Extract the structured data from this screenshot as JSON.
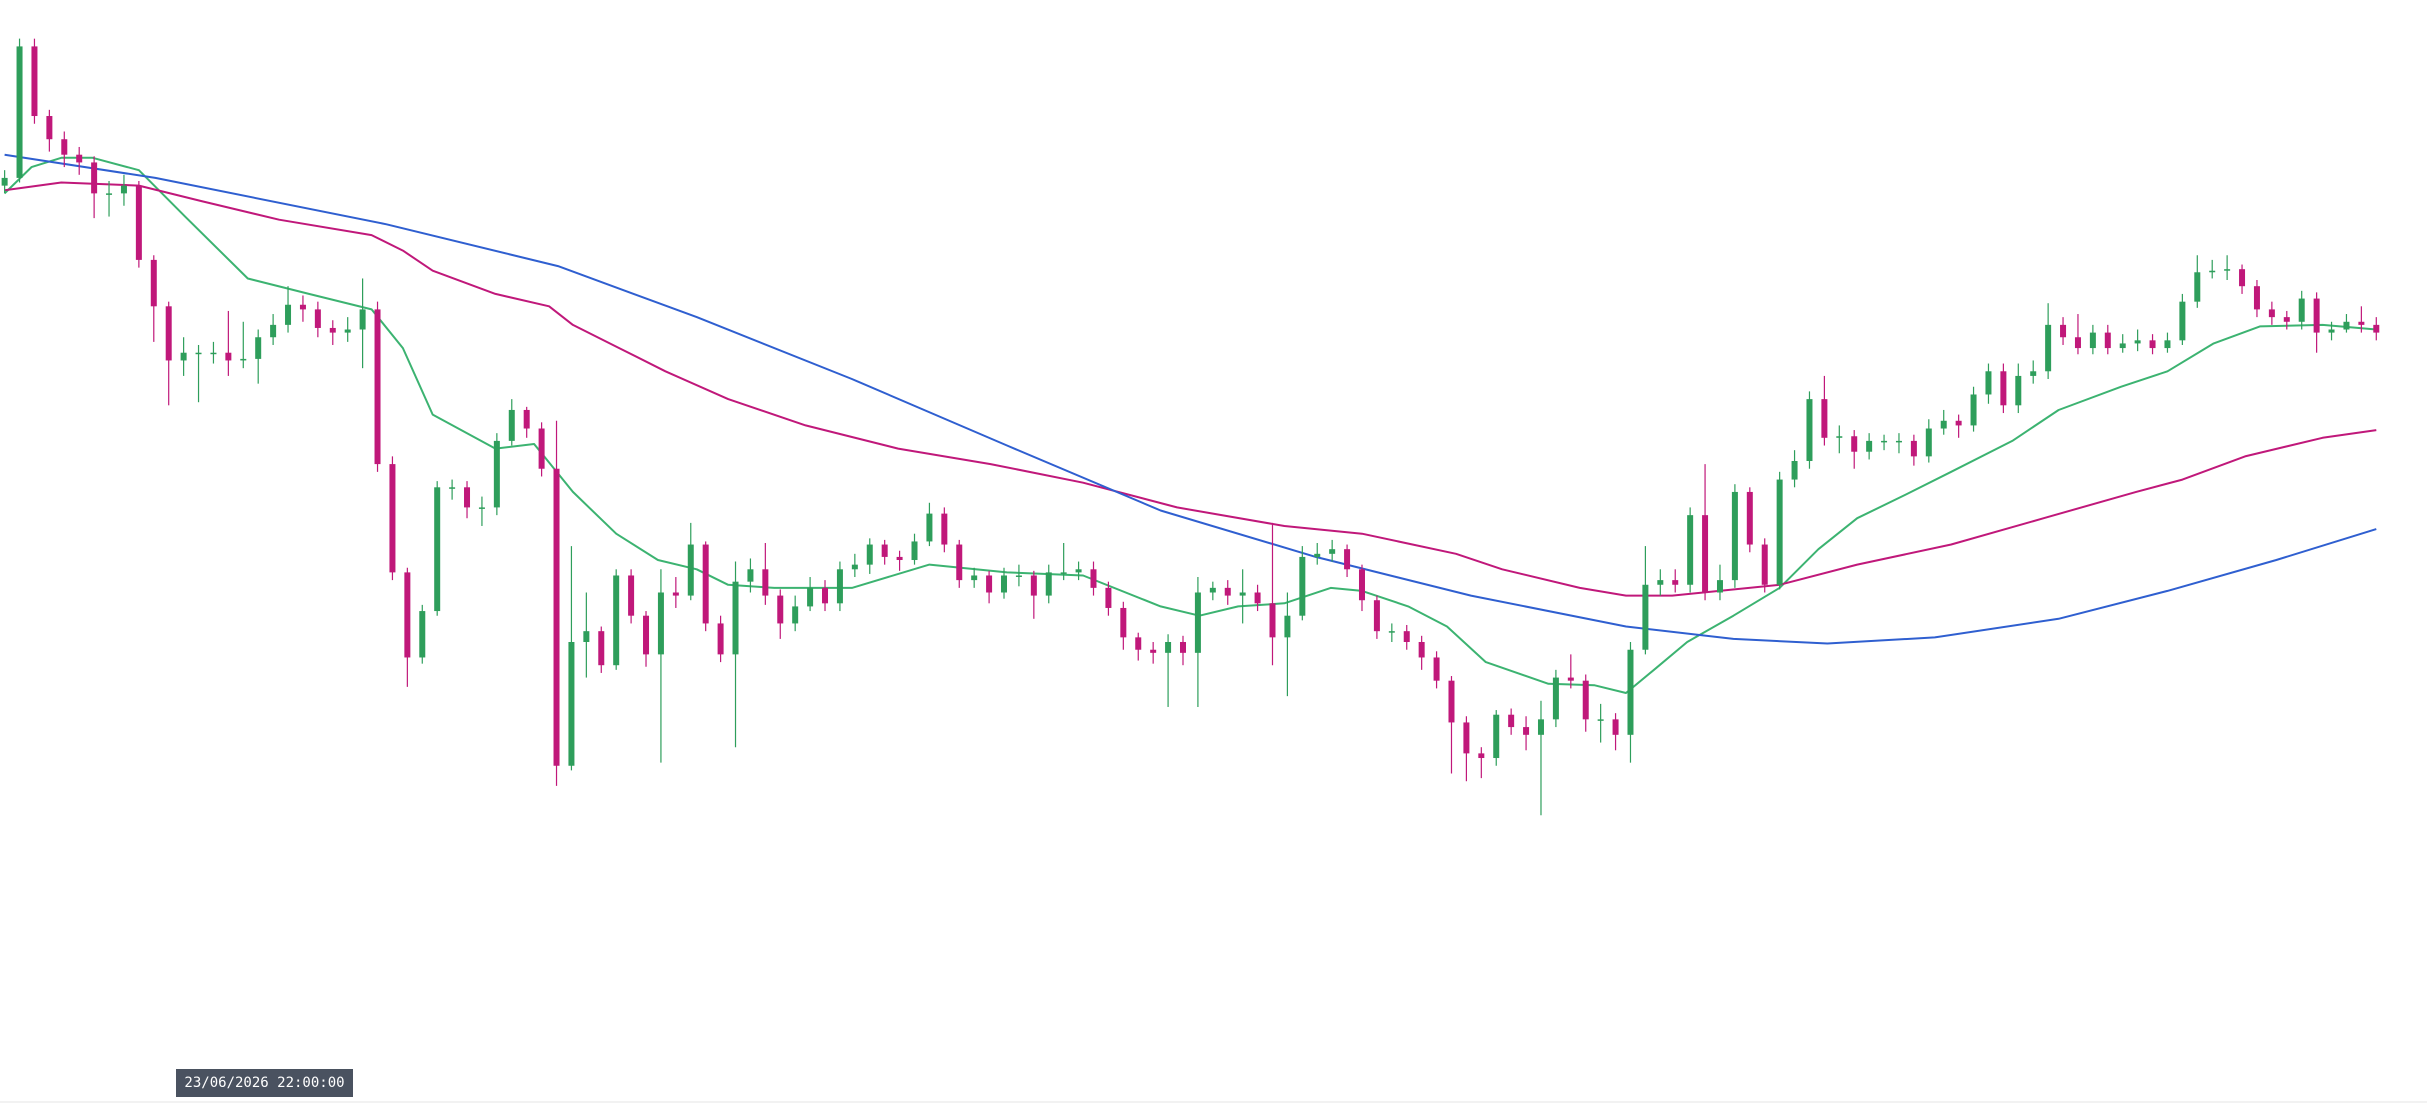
{
  "chart_data": {
    "type": "candlestick",
    "xlim": [
      -0.31,
      162.4
    ],
    "ylim": [
      0,
      713
    ],
    "up_color": "#2e9e5b",
    "down_color": "#c0187a",
    "open": [
      593,
      598,
      683,
      638,
      623,
      613,
      608,
      588,
      588,
      593,
      545,
      515,
      480,
      485,
      485,
      485,
      480,
      481,
      495,
      503,
      516,
      513,
      501,
      498,
      500,
      513,
      413,
      343,
      288,
      318,
      398,
      398,
      385,
      385,
      428,
      448,
      436,
      410,
      218,
      298,
      305,
      283,
      341,
      315,
      290,
      330,
      328,
      361,
      310,
      290,
      337,
      345,
      328,
      310,
      321,
      333,
      323,
      345,
      348,
      361,
      353,
      351,
      363,
      381,
      361,
      338,
      341,
      330,
      341,
      341,
      328,
      343,
      343,
      345,
      333,
      320,
      301,
      293,
      291,
      298,
      291,
      330,
      333,
      328,
      330,
      323,
      301,
      315,
      353,
      355,
      358,
      345,
      325,
      305,
      305,
      298,
      288,
      273,
      246,
      226,
      223,
      251,
      243,
      238,
      248,
      275,
      273,
      248,
      248,
      238,
      293,
      335,
      338,
      335,
      380,
      330,
      338,
      395,
      361,
      335,
      403,
      415,
      455,
      430,
      431,
      421,
      428,
      428,
      428,
      418,
      436,
      441,
      438,
      458,
      473,
      451,
      470,
      473,
      503,
      495,
      488,
      498,
      488,
      491,
      493,
      488,
      493,
      518,
      537,
      538,
      539,
      528,
      513,
      508,
      505,
      520,
      498,
      500,
      505,
      503
    ],
    "high": [
      603,
      688,
      688,
      642,
      628,
      618,
      612,
      596,
      600,
      596,
      548,
      518,
      495,
      490,
      492,
      512,
      505,
      500,
      510,
      528,
      522,
      518,
      506,
      508,
      533,
      518,
      418,
      346,
      322,
      402,
      403,
      402,
      392,
      433,
      455,
      450,
      440,
      441,
      360,
      330,
      308,
      345,
      345,
      318,
      345,
      340,
      375,
      363,
      315,
      350,
      352,
      362,
      332,
      328,
      340,
      338,
      350,
      355,
      365,
      364,
      357,
      368,
      388,
      385,
      364,
      346,
      344,
      346,
      348,
      344,
      348,
      362,
      350,
      350,
      337,
      324,
      304,
      298,
      303,
      302,
      340,
      337,
      338,
      345,
      335,
      375,
      330,
      360,
      362,
      364,
      361,
      348,
      328,
      310,
      309,
      302,
      292,
      276,
      250,
      230,
      254,
      255,
      250,
      260,
      280,
      290,
      277,
      258,
      252,
      298,
      360,
      345,
      345,
      385,
      413,
      348,
      400,
      398,
      365,
      408,
      422,
      460,
      470,
      438,
      435,
      433,
      432,
      433,
      432,
      442,
      448,
      445,
      463,
      478,
      478,
      478,
      480,
      517,
      508,
      510,
      503,
      503,
      497,
      500,
      497,
      498,
      523,
      548,
      545,
      548,
      542,
      532,
      518,
      512,
      525,
      524,
      505,
      510,
      515,
      508
    ],
    "low": [
      588,
      595,
      633,
      615,
      605,
      600,
      572,
      573,
      580,
      540,
      492,
      451,
      470,
      453,
      478,
      470,
      475,
      465,
      490,
      498,
      505,
      495,
      490,
      492,
      475,
      408,
      338,
      269,
      284,
      315,
      390,
      378,
      373,
      380,
      425,
      430,
      405,
      205,
      215,
      275,
      278,
      280,
      310,
      282,
      220,
      320,
      325,
      305,
      285,
      230,
      330,
      322,
      300,
      305,
      318,
      318,
      318,
      340,
      342,
      348,
      344,
      348,
      360,
      356,
      333,
      333,
      323,
      326,
      334,
      313,
      323,
      338,
      338,
      328,
      315,
      293,
      286,
      284,
      256,
      283,
      256,
      325,
      322,
      310,
      318,
      283,
      263,
      312,
      348,
      350,
      340,
      318,
      300,
      298,
      293,
      280,
      268,
      213,
      208,
      210,
      218,
      238,
      228,
      186,
      243,
      268,
      240,
      233,
      228,
      220,
      290,
      328,
      330,
      330,
      325,
      325,
      333,
      356,
      330,
      332,
      398,
      410,
      425,
      420,
      410,
      416,
      422,
      420,
      412,
      414,
      432,
      430,
      434,
      452,
      446,
      446,
      465,
      468,
      490,
      484,
      484,
      484,
      485,
      486,
      484,
      485,
      490,
      514,
      533,
      532,
      523,
      508,
      503,
      500,
      500,
      485,
      493,
      498,
      498,
      493
    ],
    "close": [
      598,
      683,
      638,
      623,
      613,
      608,
      588,
      588,
      593,
      545,
      515,
      480,
      485,
      485,
      485,
      480,
      481,
      495,
      503,
      516,
      513,
      501,
      498,
      500,
      513,
      413,
      343,
      288,
      318,
      398,
      398,
      385,
      385,
      428,
      448,
      436,
      410,
      218,
      298,
      305,
      283,
      341,
      315,
      290,
      330,
      328,
      361,
      310,
      290,
      337,
      345,
      328,
      310,
      321,
      333,
      323,
      345,
      348,
      361,
      353,
      351,
      363,
      381,
      361,
      338,
      341,
      330,
      341,
      341,
      328,
      343,
      343,
      345,
      333,
      320,
      301,
      293,
      291,
      298,
      291,
      330,
      333,
      328,
      330,
      323,
      301,
      315,
      353,
      355,
      358,
      345,
      325,
      305,
      305,
      298,
      288,
      273,
      246,
      226,
      223,
      251,
      243,
      238,
      248,
      275,
      273,
      248,
      248,
      238,
      293,
      335,
      338,
      335,
      380,
      330,
      338,
      395,
      361,
      335,
      403,
      415,
      455,
      430,
      431,
      421,
      428,
      428,
      428,
      418,
      436,
      441,
      438,
      458,
      473,
      451,
      470,
      473,
      503,
      495,
      488,
      498,
      488,
      491,
      493,
      488,
      493,
      518,
      537,
      538,
      539,
      528,
      513,
      508,
      505,
      520,
      498,
      500,
      505,
      503,
      498
    ],
    "lines": [
      {
        "color": "#3cb371",
        "x": [
          0,
          1.8,
          3.8,
          5.9,
          9.0,
          12.1,
          16.3,
          20.4,
          24.6,
          26.7,
          28.7,
          32.9,
          35.5,
          38.1,
          41.0,
          43.8,
          46.4,
          48.5,
          51.6,
          56.8,
          62.0,
          67.2,
          72.3,
          77.5,
          80.1,
          82.7,
          85.8,
          88.9,
          91.0,
          94.1,
          96.7,
          99.3,
          103.5,
          106.6,
          108.7,
          110.7,
          112.8,
          115.9,
          119.0,
          121.6,
          124.2,
          127.4,
          130.5,
          134.6,
          137.7,
          141.9,
          145.0,
          148.1,
          151.2,
          155.4,
          159.0
        ],
        "values": [
          588,
          605,
          611,
          611,
          603,
          573,
          533,
          523,
          513,
          488,
          445,
          423,
          426,
          395,
          368,
          351,
          345,
          335,
          333,
          333,
          348,
          343,
          341,
          321,
          315,
          321,
          323,
          333,
          331,
          321,
          308,
          285,
          271,
          270,
          265,
          281,
          298,
          315,
          333,
          358,
          378,
          393,
          408,
          428,
          448,
          463,
          473,
          491,
          502,
          503,
          500
        ]
      },
      {
        "color": "#c0187a",
        "x": [
          0,
          3.8,
          9.0,
          13.2,
          18.4,
          24.6,
          26.7,
          28.7,
          32.9,
          36.5,
          38.1,
          41.2,
          44.3,
          48.5,
          53.7,
          59.9,
          66.1,
          72.3,
          78.6,
          85.8,
          91.0,
          97.3,
          100.4,
          105.6,
          108.7,
          111.8,
          119.0,
          124.2,
          130.5,
          136.7,
          142.9,
          146.0,
          150.2,
          155.4,
          159.0
        ],
        "values": [
          590,
          595,
          593,
          583,
          571,
          561,
          551,
          538,
          523,
          515,
          503,
          488,
          473,
          455,
          438,
          423,
          413,
          401,
          385,
          373,
          368,
          355,
          345,
          333,
          328,
          328,
          335,
          348,
          361,
          378,
          395,
          403,
          418,
          430,
          435
        ]
      },
      {
        "color": "#2f5fd0",
        "x": [
          0,
          10.1,
          25.6,
          37.1,
          46.4,
          56.8,
          67.2,
          77.5,
          87.9,
          98.3,
          108.7,
          115.9,
          122.2,
          129.4,
          137.7,
          145.0,
          152.3,
          159.0
        ],
        "values": [
          613,
          598,
          568,
          541,
          508,
          468,
          425,
          383,
          353,
          328,
          308,
          300,
          297,
          301,
          313,
          331,
          351,
          371
        ]
      }
    ],
    "crosshair_label": "23/06/2026 22:00:00"
  }
}
